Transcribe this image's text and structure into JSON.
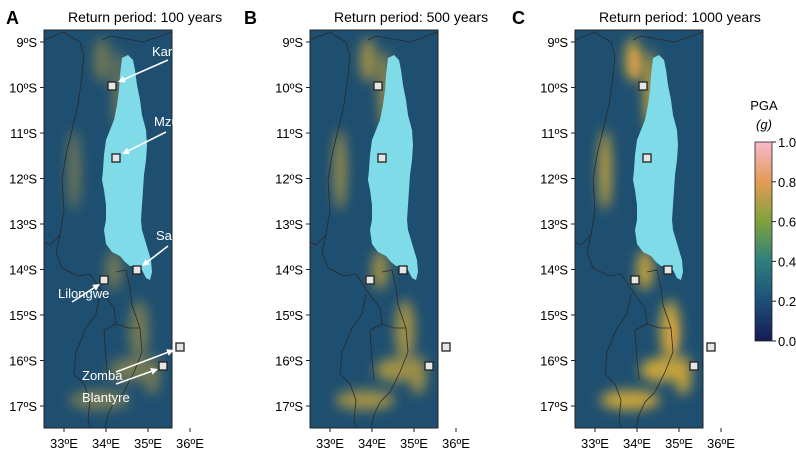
{
  "panels": [
    {
      "letter": "A",
      "title": "Return period: 100 years",
      "intensity": 0.35,
      "city_labels": [
        "Karonga",
        "Mzuzu",
        "Salima",
        "Lilongwe",
        "Zomba",
        "Blantyre"
      ]
    },
    {
      "letter": "B",
      "title": "Return period: 500 years",
      "intensity": 0.7,
      "city_labels": []
    },
    {
      "letter": "C",
      "title": "Return period: 1000 years",
      "intensity": 1.0,
      "city_labels": []
    }
  ],
  "lat_labels": [
    "9ºS",
    "10ºS",
    "11ºS",
    "12ºS",
    "13ºS",
    "14ºS",
    "15ºS",
    "16ºS",
    "17ºS"
  ],
  "lon_labels": [
    "33ºE",
    "34ºE",
    "35ºE",
    "36ºE"
  ],
  "colorbar": {
    "title": "PGA",
    "unit": "(g)",
    "ticks": [
      "1.0",
      "0.8",
      "0.6",
      "0.4",
      "0.2",
      "0.0"
    ],
    "range": [
      0.0,
      1.0
    ],
    "colors": [
      "#171a55",
      "#1d4f78",
      "#2d7f7e",
      "#7ea23c",
      "#e49a55",
      "#f7b9cf"
    ]
  },
  "colors": {
    "lake": "#7fdbe8",
    "background": "#1e4f70",
    "hotspot": "#c9a43a",
    "border": "#2a2a2a"
  }
}
